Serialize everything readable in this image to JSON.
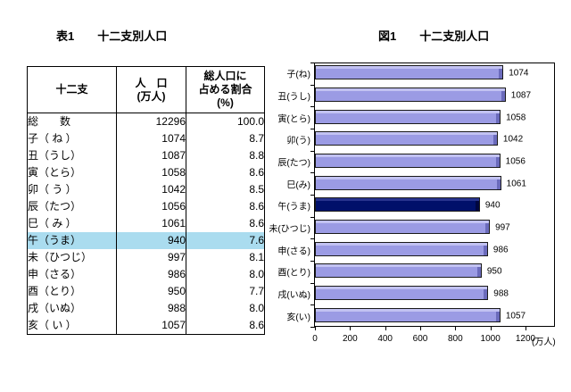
{
  "table": {
    "title": "表1　　十二支別人口",
    "headers": {
      "zodiac": "十二支",
      "population": [
        "人　口",
        "(万人)"
      ],
      "share": [
        "総人口に",
        "占める割合",
        "(%)"
      ]
    },
    "rows": [
      {
        "zodiac": "総　　数",
        "population": "12296",
        "share": "100.0",
        "highlight": false
      },
      {
        "zodiac": "子（ ね ）",
        "population": "1074",
        "share": "8.7",
        "highlight": false
      },
      {
        "zodiac": "丑（うし）",
        "population": "1087",
        "share": "8.8",
        "highlight": false
      },
      {
        "zodiac": "寅（とら）",
        "population": "1058",
        "share": "8.6",
        "highlight": false
      },
      {
        "zodiac": "卯（ う ）",
        "population": "1042",
        "share": "8.5",
        "highlight": false
      },
      {
        "zodiac": "辰（たつ）",
        "population": "1056",
        "share": "8.6",
        "highlight": false
      },
      {
        "zodiac": "巳（ み ）",
        "population": "1061",
        "share": "8.6",
        "highlight": false
      },
      {
        "zodiac": "午（うま）",
        "population": "940",
        "share": "7.6",
        "highlight": true
      },
      {
        "zodiac": "未（ひつじ）",
        "population": "997",
        "share": "8.1",
        "highlight": false
      },
      {
        "zodiac": "申（さる）",
        "population": "986",
        "share": "8.0",
        "highlight": false
      },
      {
        "zodiac": "酉（とり）",
        "population": "950",
        "share": "7.7",
        "highlight": false
      },
      {
        "zodiac": "戌（いぬ）",
        "population": "988",
        "share": "8.0",
        "highlight": false
      },
      {
        "zodiac": "亥（ い ）",
        "population": "1057",
        "share": "8.6",
        "highlight": false
      }
    ],
    "highlight_color": "#aadcef"
  },
  "chart": {
    "title": "図1　　十二支別人口"
  },
  "chart_data": {
    "type": "bar",
    "orientation": "horizontal",
    "title": "図1 十二支別人口",
    "categories": [
      "子(ね)",
      "丑(うし)",
      "寅(とら)",
      "卯(う)",
      "辰(たつ)",
      "巳(み)",
      "午(うま)",
      "未(ひつじ)",
      "申(さる)",
      "酉(とり)",
      "戌(いぬ)",
      "亥(い)"
    ],
    "values": [
      1074,
      1087,
      1058,
      1042,
      1056,
      1061,
      940,
      997,
      986,
      950,
      988,
      1057
    ],
    "highlight_index": 6,
    "highlight_category": "午(うま)",
    "xlabel": "(万人)",
    "xlim": [
      0,
      1200
    ],
    "xticks": [
      0,
      200,
      400,
      600,
      800,
      1000,
      1200
    ],
    "grid": false,
    "legend": false,
    "bar_color": "#9b9be4",
    "bar_top_color": "#c2c2f2",
    "bar_side_color": "#6b6bbc",
    "highlight_color": "#00106a",
    "highlight_top_color": "#28348e",
    "highlight_side_color": "#000640"
  }
}
